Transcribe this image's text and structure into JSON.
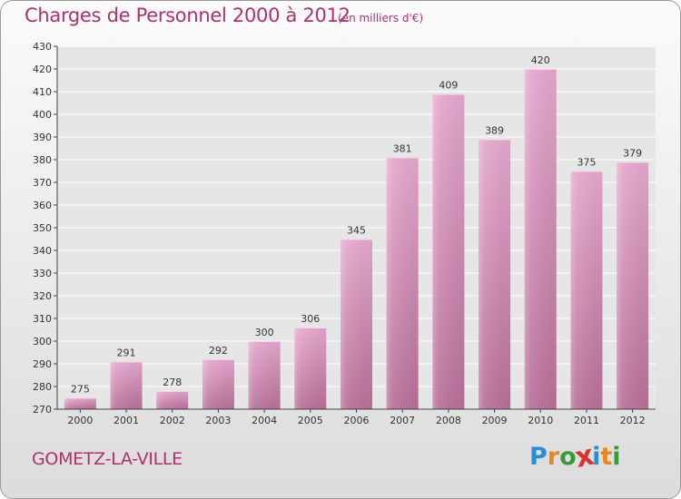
{
  "title": "Charges de Personnel 2000 à 2012",
  "subtitle": "(en milliers d'€)",
  "commune": "GOMETZ-LA-VILLE",
  "logo": {
    "text": "Proxiti",
    "letters": [
      "P",
      "r",
      "o",
      "x",
      "i",
      "t",
      "i"
    ],
    "colors": [
      "#2a8fd0",
      "#e88a1a",
      "#3a9a3a",
      "#d8342b",
      "#2a8fd0",
      "#e88a1a",
      "#3a9a3a"
    ]
  },
  "colors": {
    "bar_top": "#e6a8cf",
    "bar_bottom": "#b8709a",
    "accent": "#b0306e"
  },
  "chart_data": {
    "type": "bar",
    "title": "Charges de Personnel 2000 à 2012",
    "subtitle": "(en milliers d'€)",
    "xlabel": "",
    "ylabel": "",
    "categories": [
      "2000",
      "2001",
      "2002",
      "2003",
      "2004",
      "2005",
      "2006",
      "2007",
      "2008",
      "2009",
      "2010",
      "2011",
      "2012"
    ],
    "values": [
      275,
      291,
      278,
      292,
      300,
      306,
      345,
      381,
      409,
      389,
      420,
      375,
      379
    ],
    "ylim": [
      270,
      430
    ],
    "yticks": [
      270,
      280,
      290,
      300,
      310,
      320,
      330,
      340,
      350,
      360,
      370,
      380,
      390,
      400,
      410,
      420,
      430
    ],
    "grid": true
  }
}
